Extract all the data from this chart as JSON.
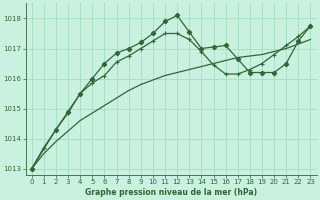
{
  "title": "Graphe pression niveau de la mer (hPa)",
  "bg_color": "#caf0e0",
  "grid_color": "#99ddbb",
  "line_color": "#336633",
  "xlim": [
    -0.5,
    23.5
  ],
  "ylim": [
    1012.8,
    1018.5
  ],
  "yticks": [
    1013,
    1014,
    1015,
    1016,
    1017,
    1018
  ],
  "xticks": [
    0,
    1,
    2,
    3,
    4,
    5,
    6,
    7,
    8,
    9,
    10,
    11,
    12,
    13,
    14,
    15,
    16,
    17,
    18,
    19,
    20,
    21,
    22,
    23
  ],
  "series_peaked": {
    "x": [
      0,
      2,
      3,
      4,
      5,
      6,
      7,
      8,
      9,
      10,
      11,
      12,
      13,
      14,
      15,
      16,
      17,
      18,
      19,
      20,
      21,
      22,
      23
    ],
    "y": [
      1013.0,
      1014.3,
      1014.9,
      1015.5,
      1016.0,
      1016.5,
      1016.85,
      1017.0,
      1017.2,
      1017.5,
      1017.9,
      1018.1,
      1017.55,
      1017.0,
      1017.05,
      1017.1,
      1016.65,
      1016.2,
      1016.2,
      1016.2,
      1016.5,
      1017.25,
      1017.75
    ]
  },
  "series_cross": {
    "x": [
      0,
      1,
      2,
      3,
      4,
      5,
      6,
      7,
      8,
      9,
      10,
      11,
      12,
      13,
      14,
      15,
      16,
      17,
      18,
      19,
      20,
      21,
      22,
      23
    ],
    "y": [
      1013.0,
      1013.7,
      1014.3,
      1014.85,
      1015.5,
      1015.85,
      1016.1,
      1016.55,
      1016.75,
      1017.0,
      1017.25,
      1017.5,
      1017.5,
      1017.3,
      1016.9,
      1016.45,
      1016.15,
      1016.15,
      1016.3,
      1016.5,
      1016.8,
      1017.1,
      1017.4,
      1017.75
    ]
  },
  "series_plain": {
    "x": [
      0,
      1,
      2,
      3,
      4,
      5,
      6,
      7,
      8,
      9,
      10,
      11,
      12,
      13,
      14,
      15,
      16,
      17,
      18,
      19,
      20,
      21,
      22,
      23
    ],
    "y": [
      1013.0,
      1013.5,
      1013.9,
      1014.25,
      1014.6,
      1014.85,
      1015.1,
      1015.35,
      1015.6,
      1015.8,
      1015.95,
      1016.1,
      1016.2,
      1016.3,
      1016.4,
      1016.5,
      1016.6,
      1016.7,
      1016.75,
      1016.8,
      1016.9,
      1017.0,
      1017.15,
      1017.3
    ]
  }
}
